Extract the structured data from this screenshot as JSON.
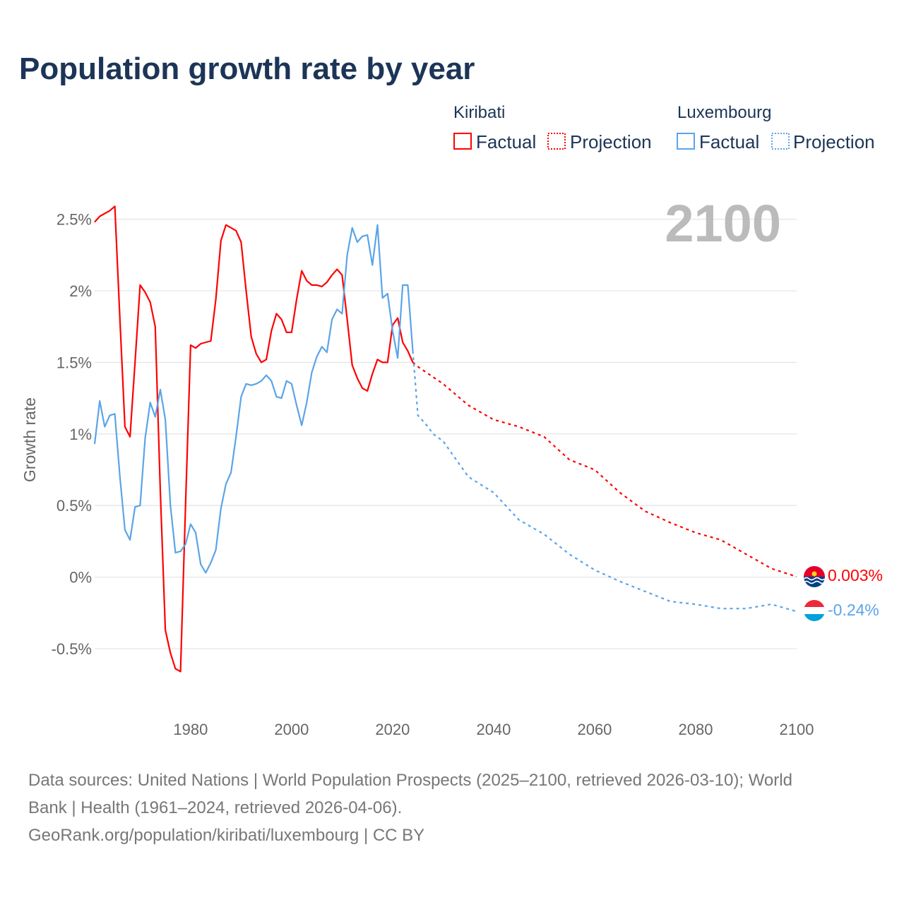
{
  "chart_data": {
    "type": "line",
    "title": "Population growth rate by year",
    "ylabel": "Growth rate",
    "xlabel": "",
    "xlim": [
      1961,
      2100
    ],
    "ylim": [
      -0.85,
      2.7
    ],
    "x_ticks": [
      1980,
      2000,
      2020,
      2040,
      2060,
      2080,
      2100
    ],
    "x_tick_labels": [
      "1980",
      "2000",
      "2020",
      "2040",
      "2060",
      "2080",
      "2100"
    ],
    "y_ticks": [
      -0.5,
      0,
      0.5,
      1,
      1.5,
      2,
      2.5
    ],
    "y_tick_labels": [
      "-0.5%",
      "0%",
      "0.5%",
      "1%",
      "1.5%",
      "2%",
      "2.5%"
    ],
    "grid": true,
    "current_year_label": "2100",
    "legend": {
      "placement": "top-right",
      "groups": [
        {
          "country": "Kiribati",
          "factual": "Factual",
          "projection": "Projection"
        },
        {
          "country": "Luxembourg",
          "factual": "Factual",
          "projection": "Projection"
        }
      ]
    },
    "series": [
      {
        "name": "Kiribati",
        "kind": "Factual",
        "color": "#ff0000",
        "x_start": 1961,
        "values": [
          2.48,
          2.52,
          2.54,
          2.56,
          2.59,
          1.8,
          1.05,
          0.98,
          1.5,
          2.04,
          1.99,
          1.92,
          1.75,
          0.6,
          -0.37,
          -0.53,
          -0.64,
          -0.66,
          0.5,
          1.62,
          1.6,
          1.63,
          1.64,
          1.65,
          1.94,
          2.35,
          2.46,
          2.44,
          2.42,
          2.34,
          2.0,
          1.68,
          1.56,
          1.5,
          1.52,
          1.72,
          1.84,
          1.8,
          1.71,
          1.71,
          1.94,
          2.14,
          2.07,
          2.04,
          2.04,
          2.03,
          2.06,
          2.11,
          2.15,
          2.11,
          1.8,
          1.48,
          1.39,
          1.32,
          1.3,
          1.42,
          1.52,
          1.5,
          1.5,
          1.76,
          1.81,
          1.64,
          1.58,
          1.5
        ]
      },
      {
        "name": "Kiribati",
        "kind": "Projection",
        "color": "#ff0000",
        "x": [
          2024,
          2025,
          2030,
          2035,
          2040,
          2045,
          2050,
          2055,
          2060,
          2065,
          2070,
          2075,
          2080,
          2085,
          2090,
          2095,
          2100
        ],
        "values": [
          1.5,
          1.47,
          1.35,
          1.2,
          1.1,
          1.05,
          0.98,
          0.82,
          0.75,
          0.59,
          0.46,
          0.38,
          0.31,
          0.26,
          0.16,
          0.06,
          0.003
        ]
      },
      {
        "name": "Luxembourg",
        "kind": "Factual",
        "color": "#5ba4e8",
        "x_start": 1961,
        "values": [
          0.93,
          1.23,
          1.05,
          1.13,
          1.14,
          0.7,
          0.33,
          0.26,
          0.49,
          0.5,
          0.97,
          1.22,
          1.12,
          1.31,
          1.1,
          0.5,
          0.17,
          0.18,
          0.23,
          0.37,
          0.31,
          0.09,
          0.03,
          0.1,
          0.19,
          0.48,
          0.65,
          0.73,
          0.98,
          1.26,
          1.35,
          1.34,
          1.35,
          1.37,
          1.41,
          1.37,
          1.26,
          1.25,
          1.37,
          1.35,
          1.2,
          1.06,
          1.22,
          1.43,
          1.54,
          1.61,
          1.57,
          1.8,
          1.87,
          1.84,
          2.25,
          2.44,
          2.34,
          2.38,
          2.39,
          2.18,
          2.46,
          1.95,
          1.98,
          1.72,
          1.53,
          2.04,
          2.04,
          1.58
        ]
      },
      {
        "name": "Luxembourg",
        "kind": "Projection",
        "color": "#5ba4e8",
        "x": [
          2024,
          2025,
          2027,
          2028,
          2030,
          2033,
          2035,
          2040,
          2045,
          2050,
          2055,
          2060,
          2065,
          2070,
          2075,
          2080,
          2085,
          2090,
          2095,
          2100
        ],
        "values": [
          1.58,
          1.13,
          1.05,
          1.0,
          0.95,
          0.8,
          0.7,
          0.59,
          0.4,
          0.3,
          0.16,
          0.05,
          -0.03,
          -0.1,
          -0.17,
          -0.19,
          -0.22,
          -0.22,
          -0.19,
          -0.24
        ]
      }
    ],
    "end_labels": [
      {
        "country": "Kiribati",
        "value": 0.003,
        "text": "0.003%",
        "color": "#ff0000"
      },
      {
        "country": "Luxembourg",
        "value": -0.24,
        "text": "-0.24%",
        "color": "#5ba4e8"
      }
    ]
  },
  "footer": {
    "line1": "Data sources: United Nations | World Population Prospects (2025–2100, retrieved 2026-03-10); World",
    "line2": "Bank | Health (1961–2024, retrieved 2026-04-06).",
    "line3": "GeoRank.org/population/kiribati/luxembourg | CC BY"
  }
}
